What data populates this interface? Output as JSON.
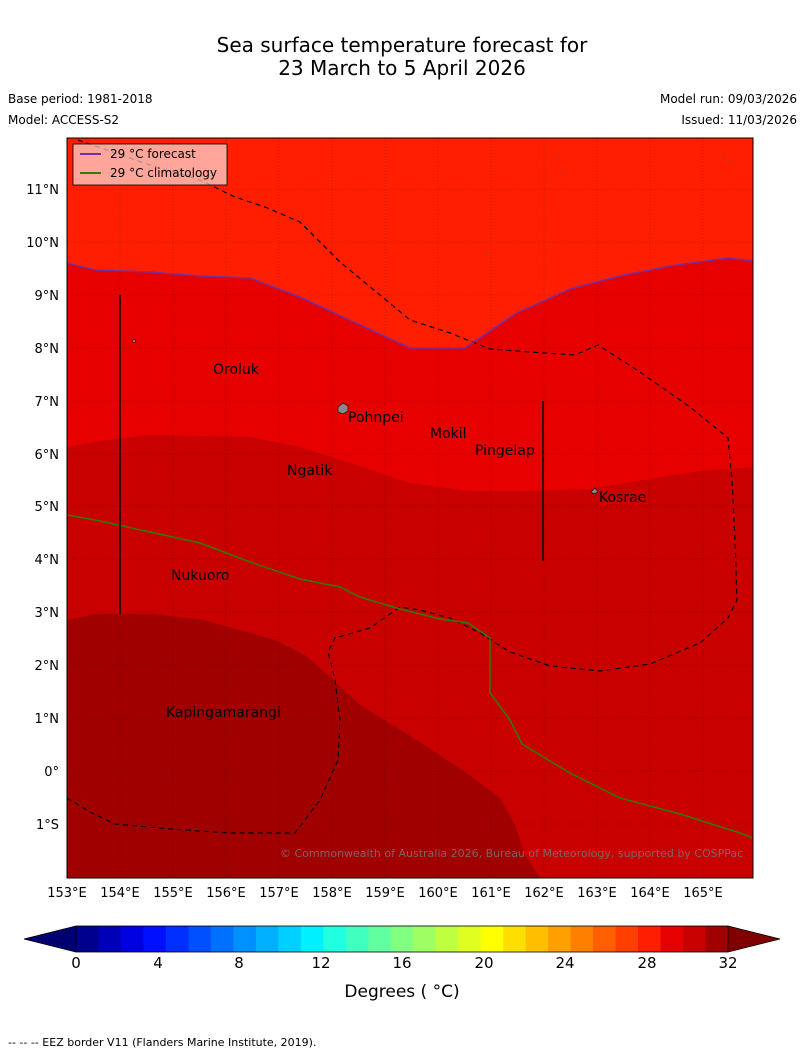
{
  "header": {
    "title_line1": "Sea surface temperature forecast for",
    "title_line2": "23 March to 5 April 2026",
    "base_period": "Base period: 1981-2018",
    "model": "Model: ACCESS-S2",
    "model_run": "Model run: 09/03/2026",
    "issued": "Issued: 11/03/2026"
  },
  "legend": {
    "forecast": "29 °C  forecast",
    "climatology": "29 °C  climatology"
  },
  "axes": {
    "lat_labels": [
      "11°N",
      "10°N",
      "9°N",
      "8°N",
      "7°N",
      "6°N",
      "5°N",
      "4°N",
      "3°N",
      "2°N",
      "1°N",
      "0°",
      "1°S"
    ],
    "lon_labels": [
      "153°E",
      "154°E",
      "155°E",
      "156°E",
      "157°E",
      "158°E",
      "159°E",
      "160°E",
      "161°E",
      "162°E",
      "163°E",
      "164°E",
      "165°E"
    ]
  },
  "places": {
    "oroluk": "Oroluk",
    "pohnpei": "Pohnpei",
    "mokil": "Mokil",
    "pingelap": "Pingelap",
    "ngatik": "Ngatik",
    "kosrae": "Kosrae",
    "nukuoro": "Nukuoro",
    "kapingamarangi": "Kapingamarangi"
  },
  "copyright": "© Commonwealth of Australia 2026, Bureau of Meteorology, supported by COSPPac",
  "colorbar": {
    "tick_labels": [
      "0",
      "4",
      "8",
      "12",
      "16",
      "20",
      "24",
      "28",
      "32"
    ],
    "label": "Degrees ( °C)",
    "colors": [
      "#00008f",
      "#0000b8",
      "#0000e0",
      "#0010ff",
      "#0030ff",
      "#0050ff",
      "#0070ff",
      "#0090ff",
      "#00b0ff",
      "#00d0ff",
      "#00f0ff",
      "#20ffdf",
      "#40ffbf",
      "#60ff9f",
      "#80ff80",
      "#9fff60",
      "#bfff40",
      "#dfff20",
      "#ffff00",
      "#ffdf00",
      "#ffbf00",
      "#ff9f00",
      "#ff7f00",
      "#ff5f00",
      "#ff3f00",
      "#ff1f00",
      "#e60000",
      "#c80000",
      "#a00000"
    ],
    "under_color": "#000070",
    "over_color": "#800000"
  },
  "fill_colors": {
    "band_28_29": "#ff1f00",
    "band_29_30": "#e60000",
    "band_30_31": "#c80000",
    "band_31_32": "#a00000",
    "forecast_line": "#7030a0",
    "climatology_line": "#2e7d00"
  },
  "footer": "--  --  -- EEZ border V11 (Flanders Marine Institute, 2019)."
}
